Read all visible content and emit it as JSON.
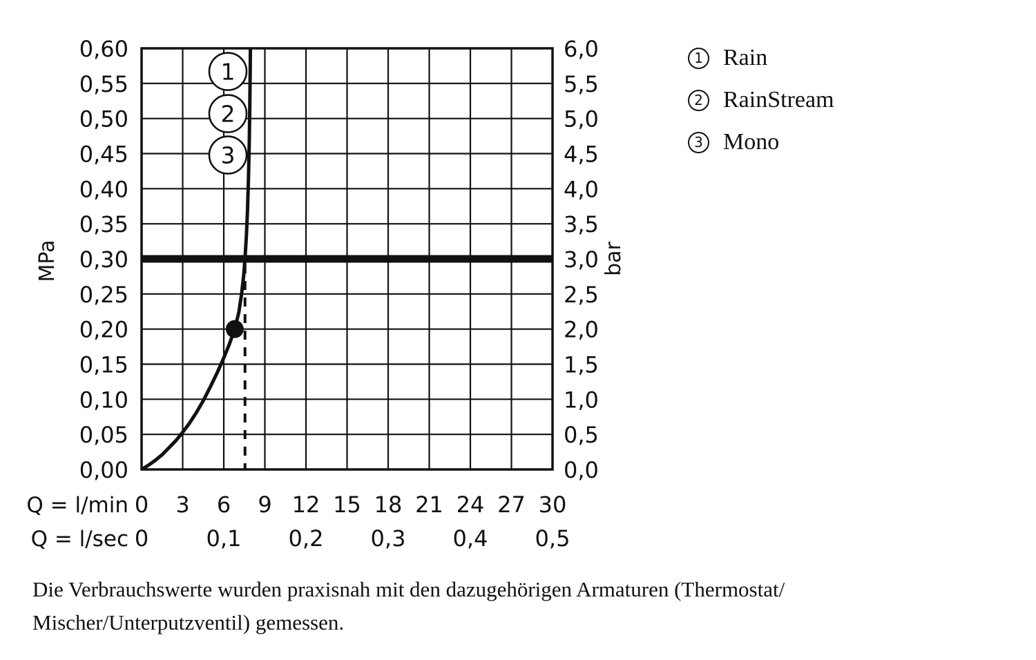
{
  "legend": {
    "items": [
      {
        "num": "1",
        "label": "Rain"
      },
      {
        "num": "2",
        "label": "RainStream"
      },
      {
        "num": "3",
        "label": "Mono"
      }
    ]
  },
  "footer": {
    "line1": "Die Verbrauchswerte wurden praxisnah mit den dazugehörigen Armaturen (Thermostat/",
    "line2": "Mischer/Unterputzventil) gemessen."
  },
  "chart_data": {
    "type": "line",
    "title": "",
    "x_axis": {
      "max": 30,
      "row1_label": "Q = l/min",
      "row1_ticks": [
        "0",
        "3",
        "6",
        "9",
        "12",
        "15",
        "18",
        "21",
        "24",
        "27",
        "30"
      ],
      "row2_label": "Q = l/sec",
      "row2_ticks": [
        "0",
        "0,1",
        "0,2",
        "0,3",
        "0,4",
        "0,5"
      ],
      "grid": true
    },
    "y_axis_left": {
      "unit": "MPa",
      "max": 0.6,
      "step": 0.05,
      "ticks": [
        "0,60",
        "0,55",
        "0,50",
        "0,45",
        "0,40",
        "0,35",
        "0,30",
        "0,25",
        "0,20",
        "0,15",
        "0,10",
        "0,05",
        "0,00"
      ]
    },
    "y_axis_right": {
      "unit": "bar",
      "max": 6,
      "step": 0.5,
      "ticks": [
        "6,0",
        "5,5",
        "5,0",
        "4,5",
        "4,0",
        "3,5",
        "3,0",
        "2,5",
        "2,0",
        "1,5",
        "1,0",
        "0,5",
        "0,0"
      ]
    },
    "reference_line": {
      "mpa": 0.3,
      "bar": 3.0
    },
    "operating_point": {
      "q_lmin": 6.8,
      "mpa": 0.2
    },
    "dashed_line": {
      "q_lmin": 7.55,
      "mpa_top": 0.3,
      "mpa_bottom": 0
    },
    "curve_points": [
      [
        0,
        0
      ],
      [
        0.5,
        0.006
      ],
      [
        1,
        0.013
      ],
      [
        1.5,
        0.021
      ],
      [
        2,
        0.031
      ],
      [
        2.5,
        0.041
      ],
      [
        3,
        0.053
      ],
      [
        3.5,
        0.066
      ],
      [
        4,
        0.081
      ],
      [
        4.5,
        0.098
      ],
      [
        5,
        0.117
      ],
      [
        5.5,
        0.137
      ],
      [
        6,
        0.159
      ],
      [
        6.4,
        0.178
      ],
      [
        6.8,
        0.2
      ],
      [
        7.1,
        0.224
      ],
      [
        7.3,
        0.25
      ],
      [
        7.45,
        0.276
      ],
      [
        7.55,
        0.3
      ],
      [
        7.65,
        0.332
      ],
      [
        7.73,
        0.368
      ],
      [
        7.8,
        0.412
      ],
      [
        7.86,
        0.465
      ],
      [
        7.9,
        0.52
      ],
      [
        7.93,
        0.57
      ],
      [
        7.95,
        0.62
      ]
    ],
    "curve_markers": [
      {
        "num": "1",
        "label": "Rain",
        "q_lmin": 6.3,
        "mpa": 0.567
      },
      {
        "num": "2",
        "label": "RainStream",
        "q_lmin": 6.3,
        "mpa": 0.507
      },
      {
        "num": "3",
        "label": "Mono",
        "q_lmin": 6.3,
        "mpa": 0.448
      }
    ]
  }
}
